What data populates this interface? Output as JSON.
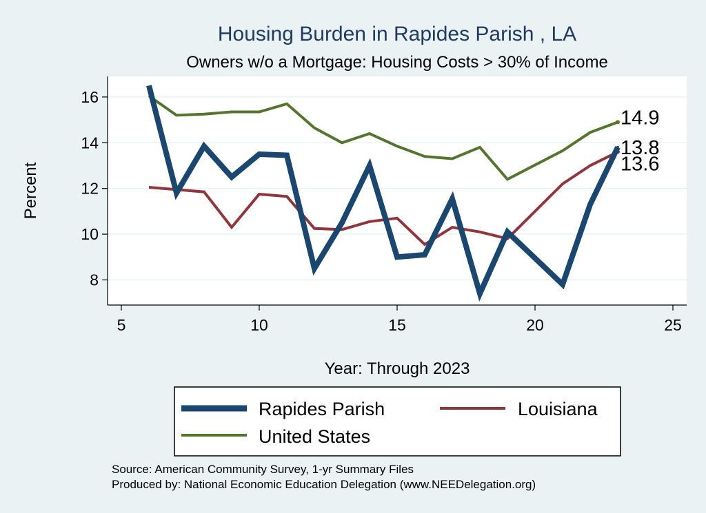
{
  "chart_data": {
    "type": "line",
    "title": "Housing Burden in Rapides Parish , LA",
    "subtitle": "Owners w/o a Mortgage: Housing Costs > 30% of Income",
    "xlabel": "Year: Through 2023",
    "ylabel": "Percent",
    "xlim": [
      4.5,
      25.5
    ],
    "ylim": [
      6.9,
      16.9
    ],
    "xticks": [
      5,
      10,
      15,
      20,
      25
    ],
    "yticks": [
      8,
      10,
      12,
      14,
      16
    ],
    "grid": true,
    "legend_position": "bottom",
    "series": [
      {
        "name": "Rapides Parish",
        "color": "#1a476f",
        "x": [
          6,
          7,
          8,
          9,
          10,
          11,
          12,
          13,
          14,
          15,
          16,
          17,
          18,
          19,
          21,
          22,
          23
        ],
        "values": [
          16.5,
          11.8,
          13.85,
          12.5,
          13.5,
          13.45,
          8.5,
          10.5,
          13.0,
          9.0,
          9.1,
          11.55,
          7.4,
          10.1,
          7.8,
          11.3,
          13.8
        ],
        "end_label": "13.8"
      },
      {
        "name": "Louisiana",
        "color": "#90353b",
        "x": [
          6,
          7,
          8,
          9,
          10,
          11,
          12,
          13,
          14,
          15,
          16,
          17,
          18,
          19,
          21,
          22,
          23
        ],
        "values": [
          12.05,
          11.95,
          11.85,
          10.3,
          11.75,
          11.65,
          10.25,
          10.2,
          10.55,
          10.7,
          9.55,
          10.3,
          10.1,
          9.8,
          12.2,
          13.0,
          13.6
        ],
        "end_label": "13.6"
      },
      {
        "name": "United States",
        "color": "#55752f",
        "x": [
          6,
          7,
          8,
          9,
          10,
          11,
          12,
          13,
          14,
          15,
          16,
          17,
          18,
          19,
          21,
          22,
          23
        ],
        "values": [
          16.05,
          15.2,
          15.25,
          15.35,
          15.35,
          15.7,
          14.65,
          14.0,
          14.4,
          13.85,
          13.4,
          13.3,
          13.8,
          12.4,
          13.65,
          14.45,
          14.9
        ],
        "end_label": "14.9"
      }
    ]
  },
  "notes": {
    "source": "Source: American Community Survey, 1-yr Summary Files",
    "produced": "Produced by: National Economic Education Delegation (www.NEEDelegation.org)"
  }
}
